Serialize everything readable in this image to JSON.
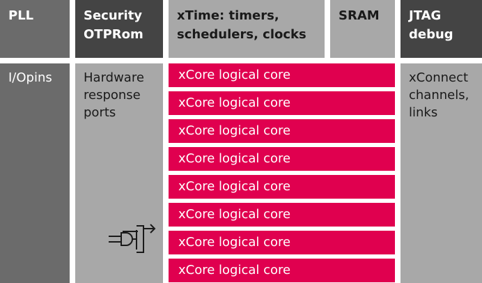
{
  "colors": {
    "dark_block": "#444444",
    "mid_block": "#6b6b6b",
    "light_block": "#a8a8a8",
    "core_block": "#e0004f"
  },
  "top_row": [
    {
      "id": "pll",
      "label": "PLL"
    },
    {
      "id": "security",
      "label": "Security\nOTPRom"
    },
    {
      "id": "xtime",
      "label": "xTime: timers,\nschedulers, clocks"
    },
    {
      "id": "sram",
      "label": "SRAM"
    },
    {
      "id": "jtag",
      "label": "JTAG\ndebug"
    }
  ],
  "bottom_row": {
    "io": "I/Opins",
    "hardware_ports": "Hardware\nresponse\nports",
    "xconnect": "xConnect\nchannels,\nlinks"
  },
  "cores": [
    "xCore logical core",
    "xCore logical core",
    "xCore logical core",
    "xCore logical core",
    "xCore logical core",
    "xCore logical core",
    "xCore logical core",
    "xCore logical core"
  ],
  "icons": {
    "port": "plug-port-icon"
  }
}
